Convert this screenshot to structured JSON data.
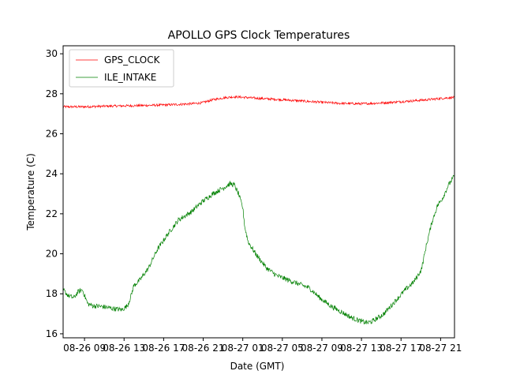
{
  "chart_data": {
    "type": "line",
    "title": "APOLLO GPS Clock Temperatures",
    "xlabel": "Date (GMT)",
    "ylabel": "Temperature (C)",
    "xlim": [
      7,
      43.6
    ],
    "ylim": [
      15.8,
      30.4
    ],
    "x_tick_positions": [
      9,
      12.7,
      16.4,
      20.1,
      23.8,
      27.5,
      31.2,
      34.9,
      38.6,
      42.3
    ],
    "x_tick_labels": [
      "08-26 09",
      "08-26 13",
      "08-26 17",
      "08-26 21",
      "08-27 01",
      "08-27 05",
      "08-27 09",
      "08-27 13",
      "08-27 17",
      "08-27 21"
    ],
    "y_ticks": [
      16,
      18,
      20,
      22,
      24,
      26,
      28,
      30
    ],
    "y_tick_labels": [
      "16",
      "18",
      "20",
      "22",
      "24",
      "26",
      "28",
      "30"
    ],
    "grid": false,
    "legend": "upper-left",
    "series": [
      {
        "name": "GPS_CLOCK",
        "color": "#ff0000",
        "points": [
          [
            7,
            27.35
          ],
          [
            9,
            27.35
          ],
          [
            11,
            27.38
          ],
          [
            13,
            27.4
          ],
          [
            15,
            27.42
          ],
          [
            17,
            27.45
          ],
          [
            19,
            27.5
          ],
          [
            20,
            27.55
          ],
          [
            21,
            27.7
          ],
          [
            22,
            27.8
          ],
          [
            23,
            27.85
          ],
          [
            24,
            27.82
          ],
          [
            25,
            27.78
          ],
          [
            27,
            27.72
          ],
          [
            29,
            27.65
          ],
          [
            31,
            27.58
          ],
          [
            33,
            27.52
          ],
          [
            35,
            27.5
          ],
          [
            37,
            27.55
          ],
          [
            39,
            27.62
          ],
          [
            41,
            27.7
          ],
          [
            43,
            27.8
          ],
          [
            43.6,
            27.82
          ]
        ]
      },
      {
        "name": "ILE_INTAKE",
        "color": "#008000",
        "points": [
          [
            7,
            18.2
          ],
          [
            7.5,
            17.9
          ],
          [
            8,
            17.8
          ],
          [
            8.4,
            18.1
          ],
          [
            8.8,
            18.2
          ],
          [
            9.3,
            17.5
          ],
          [
            9.8,
            17.4
          ],
          [
            10.8,
            17.35
          ],
          [
            11.8,
            17.25
          ],
          [
            12.5,
            17.2
          ],
          [
            13,
            17.4
          ],
          [
            13.3,
            17.8
          ],
          [
            13.6,
            18.4
          ],
          [
            14.2,
            18.7
          ],
          [
            15,
            19.3
          ],
          [
            15.8,
            20.2
          ],
          [
            16.8,
            21.0
          ],
          [
            17.8,
            21.7
          ],
          [
            19,
            22.1
          ],
          [
            20,
            22.6
          ],
          [
            21,
            23.0
          ],
          [
            22,
            23.3
          ],
          [
            22.6,
            23.5
          ],
          [
            23,
            23.45
          ],
          [
            23.4,
            23.0
          ],
          [
            23.8,
            22.3
          ],
          [
            24,
            21.3
          ],
          [
            24.3,
            20.6
          ],
          [
            25,
            20.0
          ],
          [
            26,
            19.3
          ],
          [
            27,
            18.9
          ],
          [
            28,
            18.7
          ],
          [
            29,
            18.5
          ],
          [
            30,
            18.3
          ],
          [
            31,
            17.8
          ],
          [
            32,
            17.4
          ],
          [
            33,
            17.1
          ],
          [
            34,
            16.8
          ],
          [
            35,
            16.6
          ],
          [
            35.5,
            16.55
          ],
          [
            36,
            16.65
          ],
          [
            37,
            17.0
          ],
          [
            38,
            17.6
          ],
          [
            39,
            18.2
          ],
          [
            39.8,
            18.6
          ],
          [
            40.5,
            19.2
          ],
          [
            41,
            20.5
          ],
          [
            41.5,
            21.6
          ],
          [
            42,
            22.4
          ],
          [
            42.5,
            22.8
          ],
          [
            43,
            23.4
          ],
          [
            43.6,
            23.9
          ]
        ]
      }
    ]
  }
}
